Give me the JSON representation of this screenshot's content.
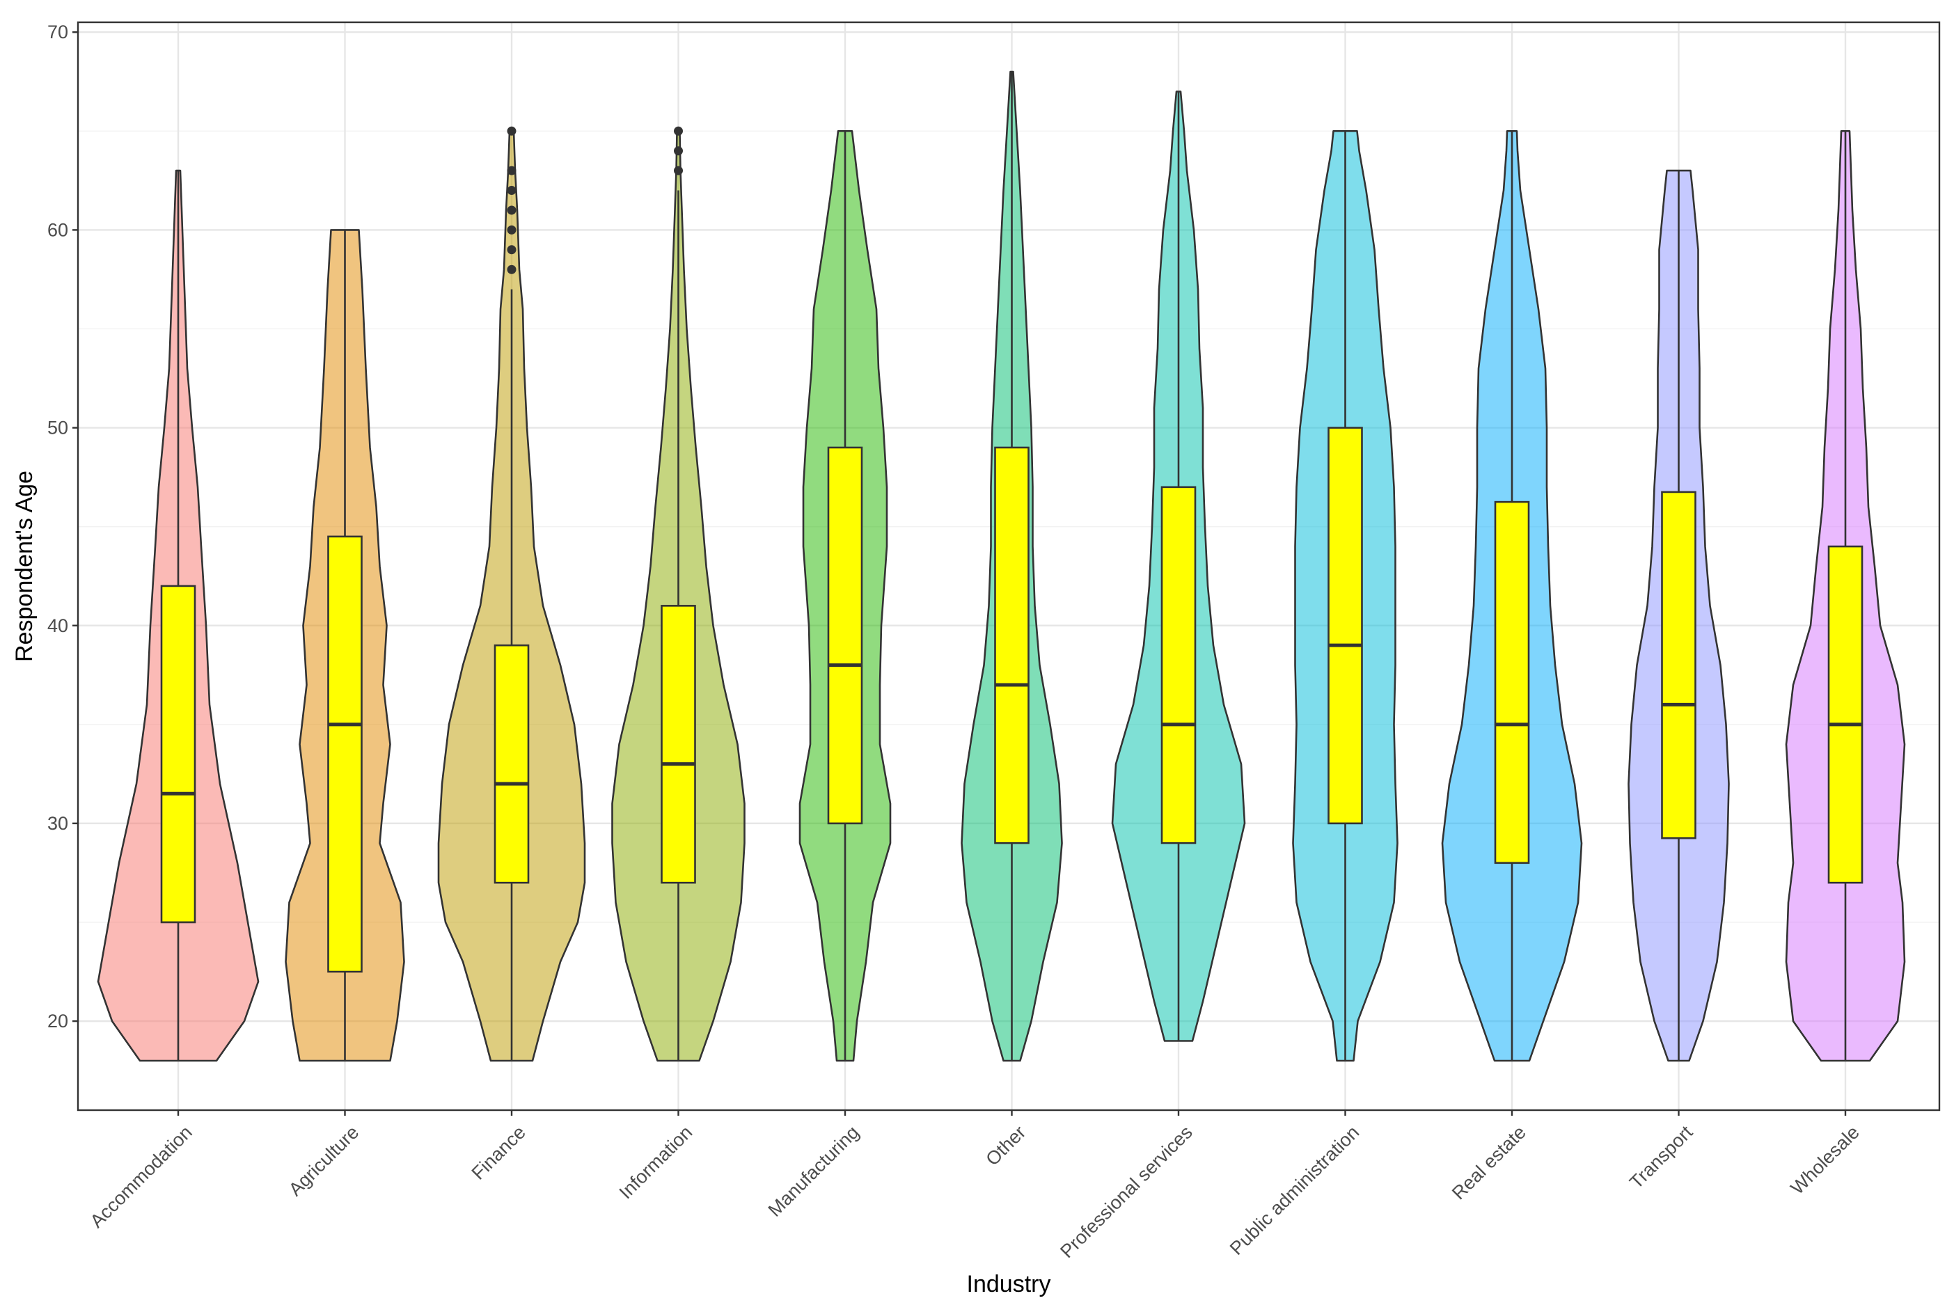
{
  "chart_data": {
    "type": "violin",
    "xlabel": "Industry",
    "ylabel": "Respondent's Age",
    "ylim": [
      15.5,
      70.5
    ],
    "yticks": [
      20,
      30,
      40,
      50,
      60,
      70
    ],
    "grid": true,
    "overlay": "boxplot",
    "box_color": "#ffff00",
    "categories": [
      {
        "name": "Accommodation",
        "color": "#f8766d",
        "min": 18,
        "max": 63,
        "q1": 25,
        "median": 31.5,
        "q3": 42,
        "outliers": [],
        "density": [
          [
            18,
            0.55
          ],
          [
            20,
            0.95
          ],
          [
            22,
            1.15
          ],
          [
            25,
            1.0
          ],
          [
            28,
            0.85
          ],
          [
            32,
            0.6
          ],
          [
            36,
            0.45
          ],
          [
            40,
            0.4
          ],
          [
            44,
            0.33
          ],
          [
            47,
            0.28
          ],
          [
            50,
            0.2
          ],
          [
            53,
            0.13
          ],
          [
            56,
            0.1
          ],
          [
            60,
            0.06
          ],
          [
            63,
            0.03
          ]
        ]
      },
      {
        "name": "Agriculture",
        "color": "#e18a00",
        "min": 18,
        "max": 60,
        "q1": 22.5,
        "median": 35,
        "q3": 44.5,
        "outliers": [],
        "density": [
          [
            18,
            0.65
          ],
          [
            20,
            0.75
          ],
          [
            23,
            0.85
          ],
          [
            26,
            0.8
          ],
          [
            29,
            0.5
          ],
          [
            31,
            0.55
          ],
          [
            34,
            0.65
          ],
          [
            37,
            0.55
          ],
          [
            40,
            0.6
          ],
          [
            43,
            0.5
          ],
          [
            46,
            0.45
          ],
          [
            49,
            0.36
          ],
          [
            53,
            0.3
          ],
          [
            57,
            0.25
          ],
          [
            60,
            0.2
          ]
        ]
      },
      {
        "name": "Finance",
        "color": "#be9c00",
        "min": 18,
        "max": 57,
        "q1": 27,
        "median": 32,
        "q3": 39,
        "outliers": [
          58,
          59,
          60,
          61,
          62,
          63,
          65
        ],
        "density": [
          [
            18,
            0.3
          ],
          [
            20,
            0.45
          ],
          [
            23,
            0.7
          ],
          [
            25,
            0.95
          ],
          [
            27,
            1.05
          ],
          [
            29,
            1.05
          ],
          [
            32,
            1.0
          ],
          [
            35,
            0.9
          ],
          [
            38,
            0.7
          ],
          [
            41,
            0.45
          ],
          [
            44,
            0.32
          ],
          [
            47,
            0.28
          ],
          [
            50,
            0.22
          ],
          [
            53,
            0.18
          ],
          [
            56,
            0.16
          ],
          [
            58,
            0.11
          ],
          [
            61,
            0.08
          ],
          [
            63,
            0.05
          ],
          [
            65,
            0.03
          ]
        ]
      },
      {
        "name": "Information",
        "color": "#8cab00",
        "min": 18,
        "max": 62,
        "q1": 27,
        "median": 33,
        "q3": 41,
        "outliers": [
          63,
          64,
          65
        ],
        "density": [
          [
            18,
            0.3
          ],
          [
            20,
            0.5
          ],
          [
            23,
            0.75
          ],
          [
            26,
            0.9
          ],
          [
            29,
            0.95
          ],
          [
            31,
            0.95
          ],
          [
            34,
            0.85
          ],
          [
            37,
            0.65
          ],
          [
            40,
            0.5
          ],
          [
            43,
            0.4
          ],
          [
            46,
            0.33
          ],
          [
            49,
            0.25
          ],
          [
            52,
            0.18
          ],
          [
            55,
            0.12
          ],
          [
            58,
            0.08
          ],
          [
            61,
            0.05
          ],
          [
            63,
            0.03
          ],
          [
            65,
            0.02
          ]
        ]
      },
      {
        "name": "Manufacturing",
        "color": "#24b700",
        "min": 18,
        "max": 65,
        "q1": 30,
        "median": 38,
        "q3": 49,
        "outliers": [],
        "density": [
          [
            18,
            0.12
          ],
          [
            20,
            0.17
          ],
          [
            23,
            0.3
          ],
          [
            26,
            0.4
          ],
          [
            29,
            0.65
          ],
          [
            31,
            0.65
          ],
          [
            34,
            0.5
          ],
          [
            37,
            0.5
          ],
          [
            40,
            0.52
          ],
          [
            44,
            0.6
          ],
          [
            47,
            0.6
          ],
          [
            50,
            0.55
          ],
          [
            53,
            0.48
          ],
          [
            56,
            0.45
          ],
          [
            59,
            0.32
          ],
          [
            62,
            0.2
          ],
          [
            65,
            0.1
          ]
        ]
      },
      {
        "name": "Other",
        "color": "#00be70",
        "min": 18,
        "max": 68,
        "q1": 29,
        "median": 37,
        "q3": 49,
        "outliers": [],
        "density": [
          [
            18,
            0.12
          ],
          [
            20,
            0.28
          ],
          [
            23,
            0.45
          ],
          [
            26,
            0.65
          ],
          [
            29,
            0.72
          ],
          [
            32,
            0.68
          ],
          [
            35,
            0.55
          ],
          [
            38,
            0.4
          ],
          [
            41,
            0.33
          ],
          [
            44,
            0.3
          ],
          [
            47,
            0.3
          ],
          [
            50,
            0.28
          ],
          [
            53,
            0.24
          ],
          [
            56,
            0.2
          ],
          [
            59,
            0.16
          ],
          [
            62,
            0.12
          ],
          [
            65,
            0.07
          ],
          [
            68,
            0.02
          ]
        ]
      },
      {
        "name": "Professional services",
        "color": "#00c1ab",
        "min": 19,
        "max": 67,
        "q1": 29,
        "median": 35,
        "q3": 47,
        "outliers": [],
        "density": [
          [
            19,
            0.2
          ],
          [
            21,
            0.35
          ],
          [
            24,
            0.55
          ],
          [
            27,
            0.75
          ],
          [
            30,
            0.95
          ],
          [
            33,
            0.9
          ],
          [
            36,
            0.65
          ],
          [
            39,
            0.5
          ],
          [
            42,
            0.42
          ],
          [
            45,
            0.38
          ],
          [
            48,
            0.35
          ],
          [
            51,
            0.35
          ],
          [
            54,
            0.3
          ],
          [
            57,
            0.28
          ],
          [
            60,
            0.22
          ],
          [
            63,
            0.12
          ],
          [
            65,
            0.08
          ],
          [
            67,
            0.03
          ]
        ]
      },
      {
        "name": "Public administration",
        "color": "#00bbda",
        "min": 18,
        "max": 65,
        "q1": 30,
        "median": 39,
        "q3": 50,
        "outliers": [],
        "density": [
          [
            18,
            0.12
          ],
          [
            20,
            0.18
          ],
          [
            23,
            0.5
          ],
          [
            26,
            0.7
          ],
          [
            29,
            0.75
          ],
          [
            32,
            0.72
          ],
          [
            35,
            0.7
          ],
          [
            38,
            0.72
          ],
          [
            41,
            0.72
          ],
          [
            44,
            0.72
          ],
          [
            47,
            0.7
          ],
          [
            50,
            0.65
          ],
          [
            53,
            0.55
          ],
          [
            56,
            0.48
          ],
          [
            59,
            0.42
          ],
          [
            62,
            0.3
          ],
          [
            64,
            0.2
          ],
          [
            65,
            0.17
          ]
        ]
      },
      {
        "name": "Real estate",
        "color": "#00acfc",
        "min": 18,
        "max": 65,
        "q1": 28,
        "median": 35,
        "q3": 46.25,
        "outliers": [],
        "density": [
          [
            18,
            0.25
          ],
          [
            20,
            0.45
          ],
          [
            23,
            0.75
          ],
          [
            26,
            0.95
          ],
          [
            29,
            1.0
          ],
          [
            32,
            0.9
          ],
          [
            35,
            0.72
          ],
          [
            38,
            0.62
          ],
          [
            41,
            0.55
          ],
          [
            44,
            0.52
          ],
          [
            47,
            0.5
          ],
          [
            50,
            0.5
          ],
          [
            53,
            0.48
          ],
          [
            56,
            0.38
          ],
          [
            59,
            0.25
          ],
          [
            62,
            0.12
          ],
          [
            64,
            0.08
          ],
          [
            65,
            0.07
          ]
        ]
      },
      {
        "name": "Transport",
        "color": "#8b93ff",
        "min": 18,
        "max": 63,
        "q1": 29.25,
        "median": 36,
        "q3": 46.75,
        "outliers": [],
        "density": [
          [
            18,
            0.15
          ],
          [
            20,
            0.35
          ],
          [
            23,
            0.55
          ],
          [
            26,
            0.65
          ],
          [
            29,
            0.7
          ],
          [
            32,
            0.72
          ],
          [
            35,
            0.68
          ],
          [
            38,
            0.6
          ],
          [
            41,
            0.45
          ],
          [
            44,
            0.38
          ],
          [
            47,
            0.35
          ],
          [
            50,
            0.3
          ],
          [
            53,
            0.3
          ],
          [
            56,
            0.28
          ],
          [
            59,
            0.28
          ],
          [
            62,
            0.2
          ],
          [
            63,
            0.17
          ]
        ]
      },
      {
        "name": "Wholesale",
        "color": "#d575fe",
        "min": 18,
        "max": 65,
        "q1": 27,
        "median": 35,
        "q3": 44,
        "outliers": [],
        "density": [
          [
            18,
            0.35
          ],
          [
            20,
            0.75
          ],
          [
            23,
            0.85
          ],
          [
            26,
            0.82
          ],
          [
            28,
            0.75
          ],
          [
            31,
            0.8
          ],
          [
            34,
            0.85
          ],
          [
            37,
            0.75
          ],
          [
            40,
            0.5
          ],
          [
            43,
            0.42
          ],
          [
            46,
            0.33
          ],
          [
            49,
            0.3
          ],
          [
            52,
            0.25
          ],
          [
            55,
            0.22
          ],
          [
            58,
            0.15
          ],
          [
            61,
            0.1
          ],
          [
            63,
            0.08
          ],
          [
            65,
            0.06
          ]
        ]
      }
    ]
  }
}
